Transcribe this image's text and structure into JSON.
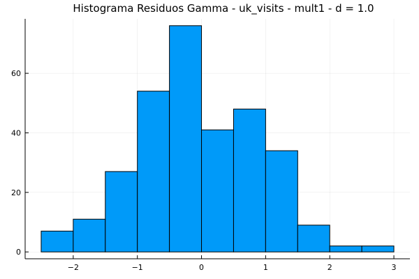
{
  "colors": {
    "bar_fill": "#009af9",
    "bar_stroke": "#000000"
  },
  "chart_data": {
    "type": "bar",
    "title": "Histograma Residuos Gamma - uk_visits - mult1 - d = 1.0",
    "xlabel": "",
    "ylabel": "",
    "bins": [
      {
        "x0": -2.5,
        "x1": -2.0,
        "count": 7
      },
      {
        "x0": -2.0,
        "x1": -1.5,
        "count": 11
      },
      {
        "x0": -1.5,
        "x1": -1.0,
        "count": 27
      },
      {
        "x0": -1.0,
        "x1": -0.5,
        "count": 54
      },
      {
        "x0": -0.5,
        "x1": 0.0,
        "count": 76
      },
      {
        "x0": 0.0,
        "x1": 0.5,
        "count": 41
      },
      {
        "x0": 0.5,
        "x1": 1.0,
        "count": 48
      },
      {
        "x0": 1.0,
        "x1": 1.5,
        "count": 34
      },
      {
        "x0": 1.5,
        "x1": 2.0,
        "count": 9
      },
      {
        "x0": 2.0,
        "x1": 2.5,
        "count": 2
      },
      {
        "x0": 2.5,
        "x1": 3.0,
        "count": 2
      }
    ],
    "xlim": [
      -2.75,
      3.25
    ],
    "ylim": [
      -2.3,
      78.3
    ],
    "x_ticks": [
      -2,
      -1,
      0,
      1,
      2,
      3
    ],
    "x_tick_labels": [
      "−2",
      "−1",
      "0",
      "1",
      "2",
      "3"
    ],
    "y_ticks": [
      0,
      20,
      40,
      60
    ],
    "y_tick_labels": [
      "0",
      "20",
      "40",
      "60"
    ],
    "grid": true,
    "legend": "none"
  }
}
